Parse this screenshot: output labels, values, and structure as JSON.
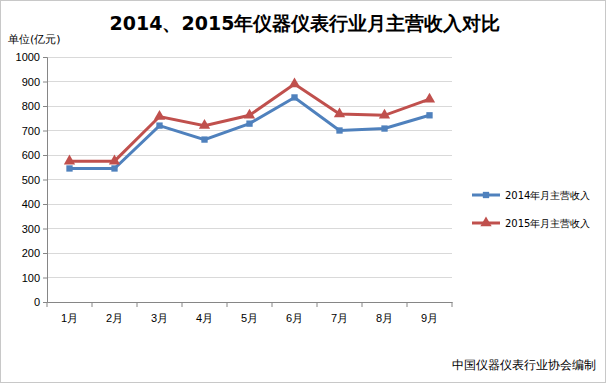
{
  "chart_data": {
    "type": "line",
    "title": "2014、2015年仪器仪表行业月主营收入对比",
    "y_label": "单位(亿元)",
    "annotations": [
      "中国仪器仪表行业协会编制"
    ],
    "categories": [
      "1月",
      "2月",
      "3月",
      "4月",
      "5月",
      "6月",
      "7月",
      "8月",
      "9月"
    ],
    "series": [
      {
        "name": "2014年月主营收入",
        "color": "#4f81bd",
        "marker": "square",
        "values": [
          545,
          545,
          720,
          663,
          728,
          835,
          700,
          708,
          762
        ]
      },
      {
        "name": "2015年月主营收入",
        "color": "#c0504d",
        "marker": "triangle",
        "values": [
          575,
          575,
          757,
          720,
          762,
          890,
          767,
          762,
          828
        ]
      }
    ],
    "ylim": [
      0,
      1000
    ],
    "yticks": [
      0,
      100,
      200,
      300,
      400,
      500,
      600,
      700,
      800,
      900,
      1000
    ],
    "grid": true,
    "legend": "right"
  }
}
